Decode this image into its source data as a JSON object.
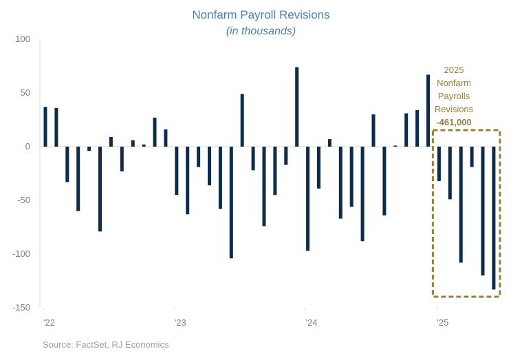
{
  "chart_data": {
    "type": "bar",
    "title": "Nonfarm Payroll Revisions",
    "subtitle": "(in thousands)",
    "ylim": [
      -150,
      100
    ],
    "yticks": [
      "100",
      "50",
      "0",
      "-50",
      "-100",
      "-150"
    ],
    "ytick_values": [
      100,
      50,
      0,
      -50,
      -100,
      -150
    ],
    "xtick_labels": [
      "'22",
      "'23",
      "'24",
      "'25"
    ],
    "xtick_month_index": [
      0,
      12,
      24,
      36
    ],
    "grid": false,
    "bar_color": "#0d2b4a",
    "series": [
      {
        "values": [
          37,
          36,
          -33,
          -60,
          -4,
          -79,
          9,
          -23,
          6,
          2,
          27,
          16,
          -45,
          -63,
          -19,
          -36,
          -58,
          -104,
          49,
          -22,
          -74,
          -45,
          -17,
          74,
          -97,
          -39,
          7,
          -67,
          -56,
          -88,
          30,
          -64,
          1,
          31,
          34,
          67,
          -32,
          -49,
          -108,
          -19,
          -120,
          -133
        ]
      }
    ],
    "annotation": {
      "lines": [
        "2025",
        "Nonfarm",
        "Payrolls",
        "Revisions"
      ],
      "value": "-461,000",
      "color": "#9a7f3c",
      "highlight_start_index": 36
    },
    "source": "Source: FactSet, RJ Economics"
  }
}
